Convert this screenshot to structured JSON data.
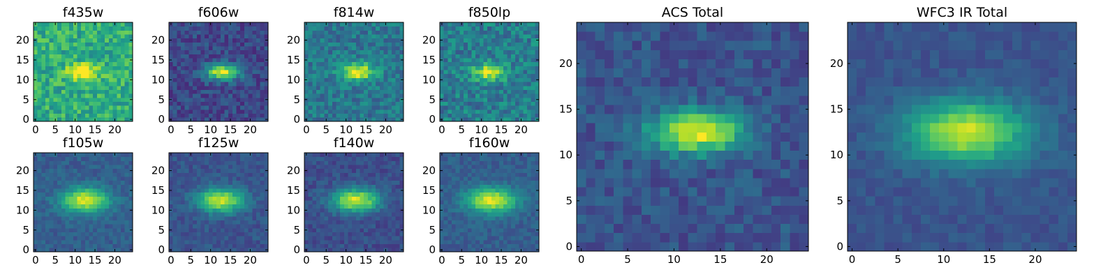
{
  "figure": {
    "description_free": true
  },
  "colormap": {
    "name": "viridis",
    "stops": [
      "#440154",
      "#482878",
      "#3e4989",
      "#31688e",
      "#26828e",
      "#1f9e89",
      "#35b779",
      "#6ece58",
      "#b5de2b",
      "#fde725"
    ]
  },
  "chart_data": [
    {
      "type": "heatmap",
      "title": "f435w",
      "grid_size": 25,
      "xticks": [
        0,
        5,
        10,
        15,
        20
      ],
      "yticks": [
        0,
        5,
        10,
        15,
        20
      ],
      "xlim": [
        -0.5,
        24.5
      ],
      "ylim": [
        -0.5,
        24.5
      ],
      "source": {
        "cx": 12,
        "cy": 12,
        "sx": 2.6,
        "sy": 1.3,
        "peak": 0.55,
        "bg": 0.62,
        "noise": 0.32,
        "seed": 11
      }
    },
    {
      "type": "heatmap",
      "title": "f606w",
      "grid_size": 25,
      "xticks": [
        0,
        5,
        10,
        15,
        20
      ],
      "yticks": [
        0,
        5,
        10,
        15,
        20
      ],
      "xlim": [
        -0.5,
        24.5
      ],
      "ylim": [
        -0.5,
        24.5
      ],
      "source": {
        "cx": 13,
        "cy": 12,
        "sx": 3.0,
        "sy": 1.4,
        "peak": 0.75,
        "bg": 0.22,
        "noise": 0.22,
        "seed": 23
      }
    },
    {
      "type": "heatmap",
      "title": "f814w",
      "grid_size": 25,
      "xticks": [
        0,
        5,
        10,
        15,
        20
      ],
      "yticks": [
        0,
        5,
        10,
        15,
        20
      ],
      "xlim": [
        -0.5,
        24.5
      ],
      "ylim": [
        -0.5,
        24.5
      ],
      "source": {
        "cx": 13,
        "cy": 12,
        "sx": 3.0,
        "sy": 1.5,
        "peak": 0.6,
        "bg": 0.4,
        "noise": 0.26,
        "seed": 37
      }
    },
    {
      "type": "heatmap",
      "title": "f850lp",
      "grid_size": 25,
      "xticks": [
        0,
        5,
        10,
        15,
        20
      ],
      "yticks": [
        0,
        5,
        10,
        15,
        20
      ],
      "xlim": [
        -0.5,
        24.5
      ],
      "ylim": [
        -0.5,
        24.5
      ],
      "source": {
        "cx": 12,
        "cy": 12,
        "sx": 3.0,
        "sy": 1.6,
        "peak": 0.5,
        "bg": 0.42,
        "noise": 0.3,
        "seed": 41
      }
    },
    {
      "type": "heatmap",
      "title": "ACS Total",
      "grid_size": 25,
      "xticks": [
        0,
        5,
        10,
        15,
        20
      ],
      "yticks": [
        0,
        5,
        10,
        15,
        20
      ],
      "xlim": [
        -0.5,
        24.5
      ],
      "ylim": [
        -0.5,
        24.5
      ],
      "source": {
        "cx": 12.5,
        "cy": 12.5,
        "sx": 3.6,
        "sy": 1.6,
        "peak": 0.72,
        "bg": 0.26,
        "noise": 0.18,
        "seed": 53
      }
    },
    {
      "type": "heatmap",
      "title": "f105w",
      "grid_size": 25,
      "xticks": [
        0,
        5,
        10,
        15,
        20
      ],
      "yticks": [
        0,
        5,
        10,
        15,
        20
      ],
      "xlim": [
        -0.5,
        24.5
      ],
      "ylim": [
        -0.5,
        24.5
      ],
      "source": {
        "cx": 12.5,
        "cy": 12.5,
        "sx": 4.2,
        "sy": 2.2,
        "peak": 0.65,
        "bg": 0.3,
        "noise": 0.14,
        "seed": 61
      }
    },
    {
      "type": "heatmap",
      "title": "f125w",
      "grid_size": 25,
      "xticks": [
        0,
        5,
        10,
        15,
        20
      ],
      "yticks": [
        0,
        5,
        10,
        15,
        20
      ],
      "xlim": [
        -0.5,
        24.5
      ],
      "ylim": [
        -0.5,
        24.5
      ],
      "source": {
        "cx": 12.5,
        "cy": 12.5,
        "sx": 4.0,
        "sy": 2.1,
        "peak": 0.68,
        "bg": 0.26,
        "noise": 0.14,
        "seed": 73
      }
    },
    {
      "type": "heatmap",
      "title": "f140w",
      "grid_size": 25,
      "xticks": [
        0,
        5,
        10,
        15,
        20
      ],
      "yticks": [
        0,
        5,
        10,
        15,
        20
      ],
      "xlim": [
        -0.5,
        24.5
      ],
      "ylim": [
        -0.5,
        24.5
      ],
      "source": {
        "cx": 12.5,
        "cy": 12.5,
        "sx": 4.2,
        "sy": 2.1,
        "peak": 0.7,
        "bg": 0.24,
        "noise": 0.15,
        "seed": 83
      }
    },
    {
      "type": "heatmap",
      "title": "f160w",
      "grid_size": 25,
      "xticks": [
        0,
        5,
        10,
        15,
        20
      ],
      "yticks": [
        0,
        5,
        10,
        15,
        20
      ],
      "xlim": [
        -0.5,
        24.5
      ],
      "ylim": [
        -0.5,
        24.5
      ],
      "source": {
        "cx": 12.5,
        "cy": 12.5,
        "sx": 4.4,
        "sy": 2.2,
        "peak": 0.66,
        "bg": 0.3,
        "noise": 0.13,
        "seed": 97
      }
    },
    {
      "type": "heatmap",
      "title": "WFC3 IR Total",
      "grid_size": 25,
      "xticks": [
        0,
        5,
        10,
        15,
        20
      ],
      "yticks": [
        0,
        5,
        10,
        15,
        20
      ],
      "xlim": [
        -0.5,
        24.5
      ],
      "ylim": [
        -0.5,
        24.5
      ],
      "source": {
        "cx": 12.5,
        "cy": 12.5,
        "sx": 4.6,
        "sy": 2.4,
        "peak": 0.66,
        "bg": 0.26,
        "noise": 0.1,
        "seed": 109
      }
    }
  ]
}
